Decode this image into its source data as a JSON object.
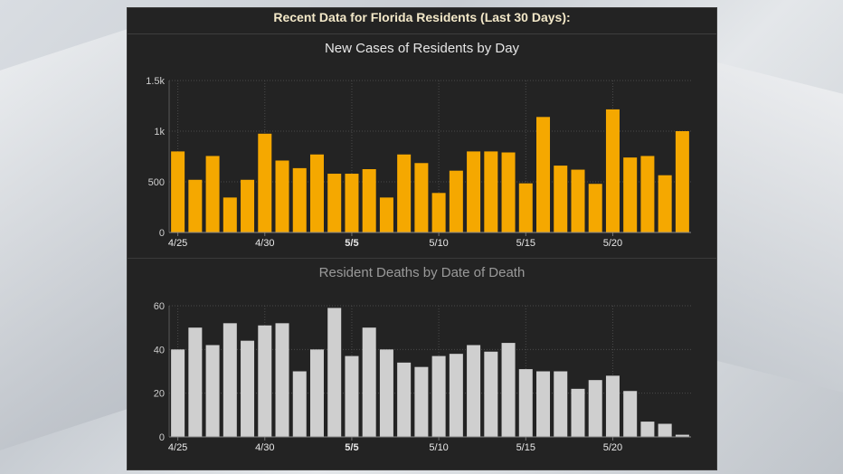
{
  "dashboard_title": "Recent Data for Florida Residents (Last 30 Days):",
  "chart_data": [
    {
      "type": "bar",
      "title": "New Cases of Residents by Day",
      "color": "#f5a800",
      "xticks": [
        "4/25",
        "4/30",
        "5/5",
        "5/10",
        "5/15",
        "5/20"
      ],
      "yticks": [
        "1.5k",
        "1k",
        "500",
        "0"
      ],
      "ylim": [
        0,
        1500
      ],
      "grid": true,
      "values": [
        800,
        520,
        755,
        345,
        520,
        975,
        710,
        635,
        770,
        580,
        580,
        625,
        345,
        770,
        685,
        390,
        610,
        800,
        800,
        790,
        485,
        1140,
        660,
        620,
        480,
        1215,
        740,
        755,
        565,
        1000
      ]
    },
    {
      "type": "bar",
      "title": "Resident Deaths by Date of Death",
      "color": "#cfcfcf",
      "xticks": [
        "4/25",
        "4/30",
        "5/5",
        "5/10",
        "5/15",
        "5/20"
      ],
      "yticks": [
        "60",
        "40",
        "20",
        "0"
      ],
      "ylim": [
        0,
        60
      ],
      "grid": true,
      "values": [
        40,
        50,
        42,
        52,
        44,
        51,
        52,
        30,
        40,
        59,
        37,
        50,
        40,
        34,
        32,
        37,
        38,
        42,
        39,
        43,
        31,
        30,
        30,
        22,
        26,
        28,
        21,
        7,
        6,
        1
      ]
    }
  ]
}
